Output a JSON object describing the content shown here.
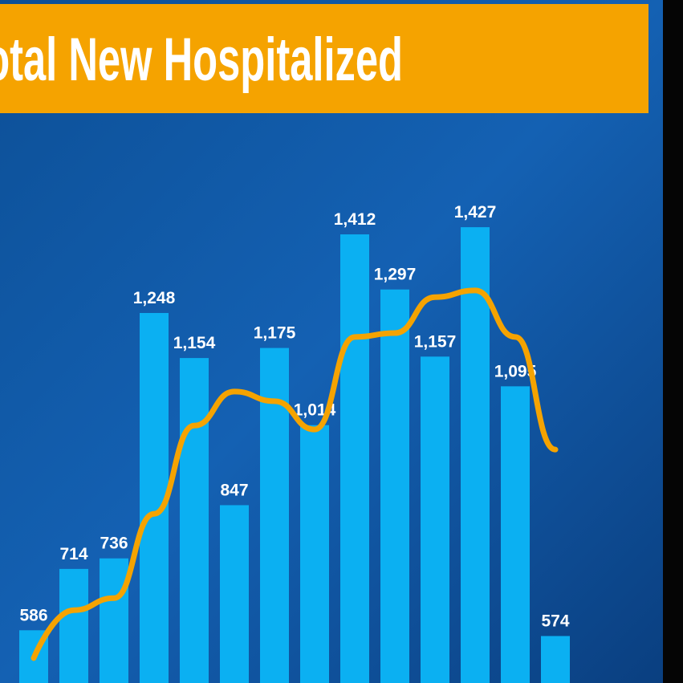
{
  "chart_data": {
    "type": "bar",
    "title": "Total New Hospitalized",
    "categories": [
      null,
      null,
      null,
      null,
      null,
      null,
      null,
      null,
      null,
      null,
      null,
      null,
      null,
      null
    ],
    "values": [
      586,
      714,
      736,
      1248,
      1154,
      847,
      1175,
      1014,
      1412,
      1297,
      1157,
      1427,
      1095,
      574
    ],
    "value_labels": [
      "586",
      "714",
      "736",
      "1,248",
      "1,154",
      "847",
      "1,175",
      "1,014",
      "1,412",
      "1,297",
      "1,157",
      "1,427",
      "1,095",
      "574"
    ],
    "color": "#0bb0f2",
    "ylim": [
      476,
      1901
    ],
    "trend": {
      "type": "line",
      "color": "#f5a300",
      "values": [
        528,
        628,
        653,
        829,
        1013,
        1084,
        1064,
        1005,
        1198,
        1206,
        1281,
        1295,
        1198,
        963
      ]
    }
  }
}
